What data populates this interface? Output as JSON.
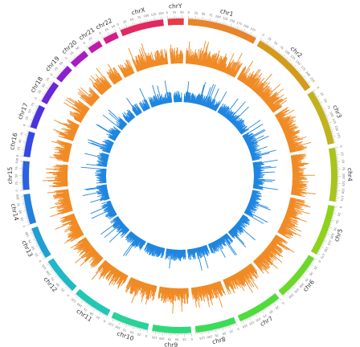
{
  "chart_data": {
    "type": "circos",
    "title": "",
    "track_colors": {
      "outer_histogram": "#f08a24",
      "inner_histogram": "#1f86e0",
      "tick": "#888888"
    },
    "chromosomes": [
      {
        "name": "chr1",
        "size": 249,
        "color": "#e8842a"
      },
      {
        "name": "chr2",
        "size": 242,
        "color": "#d49a1c"
      },
      {
        "name": "chr3",
        "size": 198,
        "color": "#bfb21d"
      },
      {
        "name": "chr4",
        "size": 190,
        "color": "#a9c41b"
      },
      {
        "name": "chr5",
        "size": 181,
        "color": "#8ed21d"
      },
      {
        "name": "chr6",
        "size": 171,
        "color": "#6cd82a"
      },
      {
        "name": "chr7",
        "size": 159,
        "color": "#4fdc3a"
      },
      {
        "name": "chr8",
        "size": 145,
        "color": "#3bdc58"
      },
      {
        "name": "chr9",
        "size": 138,
        "color": "#2fd97b"
      },
      {
        "name": "chr10",
        "size": 134,
        "color": "#28d29a"
      },
      {
        "name": "chr11",
        "size": 135,
        "color": "#22c7b3"
      },
      {
        "name": "chr12",
        "size": 133,
        "color": "#1fb8c6"
      },
      {
        "name": "chr13",
        "size": 114,
        "color": "#1f9fd4"
      },
      {
        "name": "chr14",
        "size": 107,
        "color": "#2380dc"
      },
      {
        "name": "chr15",
        "size": 102,
        "color": "#2a62e0"
      },
      {
        "name": "chr16",
        "size": 90,
        "color": "#3447e2"
      },
      {
        "name": "chr17",
        "size": 83,
        "color": "#4a32de"
      },
      {
        "name": "chr18",
        "size": 80,
        "color": "#6a26d8"
      },
      {
        "name": "chr19",
        "size": 59,
        "color": "#8c1fd0"
      },
      {
        "name": "chr20",
        "size": 64,
        "color": "#a81cc2"
      },
      {
        "name": "chr21",
        "size": 47,
        "color": "#c11aa8"
      },
      {
        "name": "chr22",
        "size": 51,
        "color": "#d41c8a"
      },
      {
        "name": "chrX",
        "size": 155,
        "color": "#e22860"
      },
      {
        "name": "chrY",
        "size": 57,
        "color": "#e83a48"
      }
    ]
  }
}
